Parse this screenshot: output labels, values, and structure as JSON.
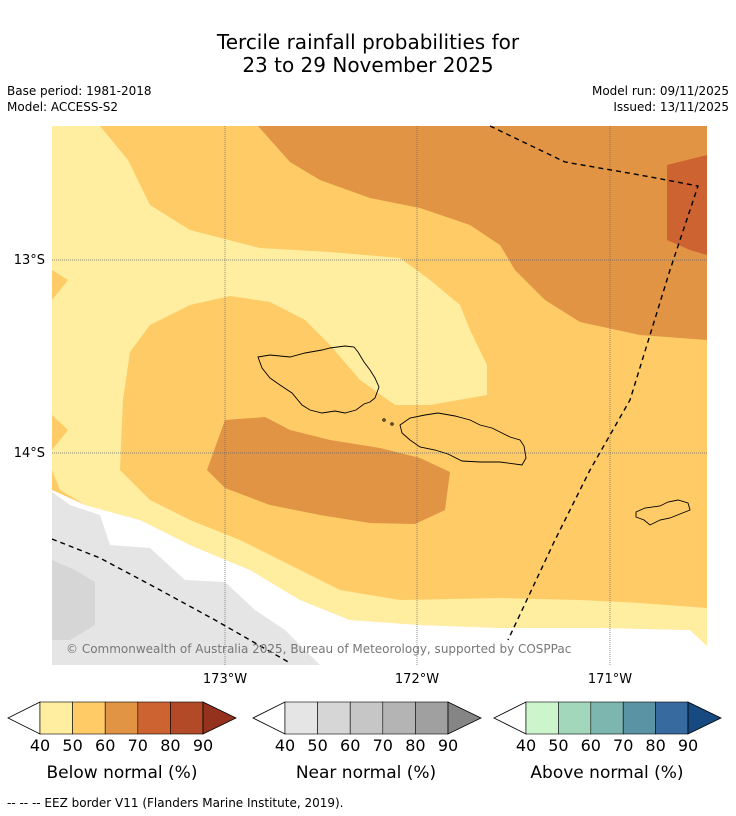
{
  "header": {
    "title_line1": "Tercile rainfall probabilities for",
    "title_line2": "23 to 29 November 2025",
    "base_period": "Base period: 1981-2018",
    "model": "Model: ACCESS-S2",
    "model_run": "Model run: 09/11/2025",
    "issued": "Issued: 13/11/2025"
  },
  "map": {
    "lat_labels": [
      "13°S",
      "14°S"
    ],
    "lon_labels": [
      "173°W",
      "172°W",
      "171°W"
    ],
    "copyright": "© Commonwealth of Australia 2025, Bureau of Meteorology, supported by COSPPac"
  },
  "colorbars": [
    {
      "name": "below",
      "title": "Below normal (%)",
      "ticks": [
        "40",
        "50",
        "60",
        "70",
        "80",
        "90"
      ],
      "colors": [
        "#ffeda0",
        "#fecb66",
        "#e09444",
        "#cc6330",
        "#b34a27",
        "#95321d"
      ]
    },
    {
      "name": "near",
      "title": "Near normal (%)",
      "ticks": [
        "40",
        "50",
        "60",
        "70",
        "80",
        "90"
      ],
      "colors": [
        "#e5e5e5",
        "#d6d6d6",
        "#c6c6c6",
        "#b4b4b4",
        "#a0a0a0",
        "#858585"
      ]
    },
    {
      "name": "above",
      "title": "Above normal (%)",
      "ticks": [
        "40",
        "50",
        "60",
        "70",
        "80",
        "90"
      ],
      "colors": [
        "#ccf5cc",
        "#a3d7bc",
        "#7db6af",
        "#5a94a4",
        "#376a9e",
        "#164a80"
      ]
    }
  ],
  "footer": {
    "note": "--  --  -- EEZ border V11 (Flanders Marine Institute, 2019)."
  }
}
